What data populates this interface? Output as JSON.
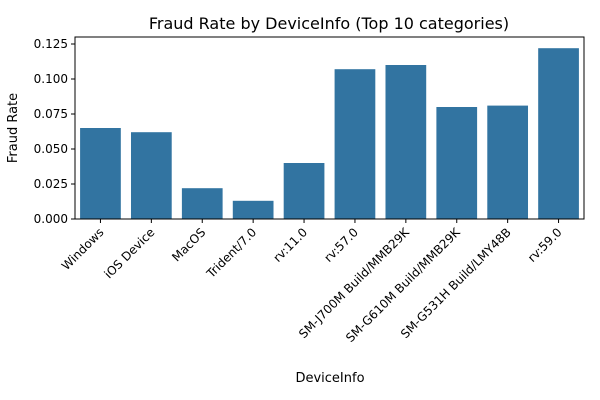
{
  "chart_data": {
    "type": "bar",
    "title": "Fraud Rate by DeviceInfo (Top 10 categories)",
    "xlabel": "DeviceInfo",
    "ylabel": "Fraud Rate",
    "categories": [
      "Windows",
      "iOS Device",
      "MacOS",
      "Trident/7.0",
      "rv:11.0",
      "rv:57.0",
      "SM-J700M Build/MMB29K",
      "SM-G610M Build/MMB29K",
      "SM-G531H Build/LMY48B",
      "rv:59.0"
    ],
    "values": [
      0.065,
      0.062,
      0.022,
      0.013,
      0.04,
      0.107,
      0.11,
      0.08,
      0.081,
      0.122
    ],
    "ylim": [
      0,
      0.13
    ],
    "yticks": [
      0.0,
      0.025,
      0.05,
      0.075,
      0.1,
      0.125
    ],
    "ytick_labels": [
      "0.000",
      "0.025",
      "0.050",
      "0.075",
      "0.100",
      "0.125"
    ],
    "grid": false,
    "bar_color": "#3274a1"
  }
}
